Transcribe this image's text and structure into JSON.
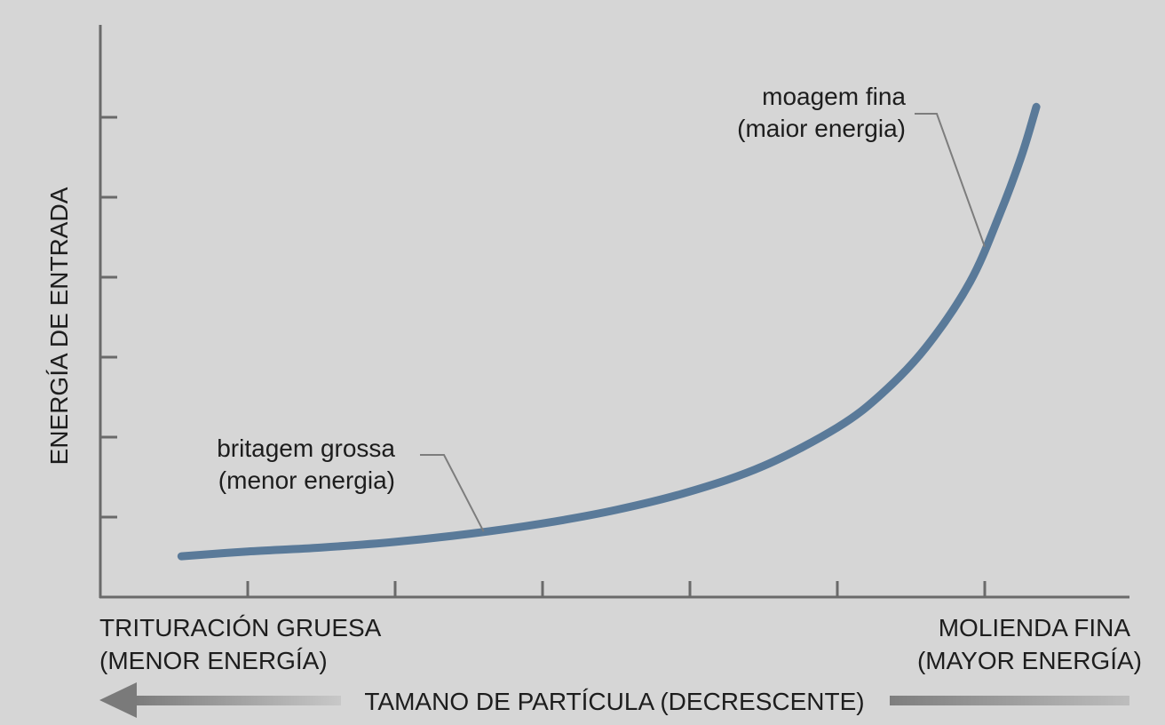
{
  "chart_data": {
    "type": "line",
    "title": "",
    "ylabel": "ENERGÍA DE ENTRADA",
    "xlabel": "TAMANO DE PARTÍCULA (DECRESCENTE)",
    "x_left_label": [
      "TRITURACIÓN GRUESA",
      "(MENOR ENERGÍA)"
    ],
    "x_right_label": [
      "MOLIENDA FINA",
      "(MAYOR ENERGÍA)"
    ],
    "grid": false,
    "xlim": [
      0,
      7
    ],
    "ylim": [
      0,
      6
    ],
    "x_ticks": [
      1,
      2,
      3,
      4,
      5,
      6
    ],
    "y_ticks": [
      1,
      2,
      3,
      4,
      5,
      6
    ],
    "series": [
      {
        "color": "#5a7a99",
        "x": [
          0.55,
          1.0,
          1.5,
          2.0,
          2.5,
          3.0,
          3.5,
          4.0,
          4.5,
          5.0,
          5.3,
          5.6,
          5.9,
          6.1,
          6.25,
          6.35
        ],
        "y": [
          0.51,
          0.57,
          0.62,
          0.69,
          0.79,
          0.92,
          1.09,
          1.32,
          1.64,
          2.12,
          2.54,
          3.12,
          3.94,
          4.78,
          5.52,
          6.13
        ]
      }
    ],
    "annotations": [
      {
        "lines": [
          "britagem grossa",
          "(menor energia)"
        ],
        "x": 2.6,
        "y": 0.82
      },
      {
        "lines": [
          "moagem fina",
          "(maior energia)"
        ],
        "x": 6.0,
        "y": 4.38
      }
    ]
  }
}
